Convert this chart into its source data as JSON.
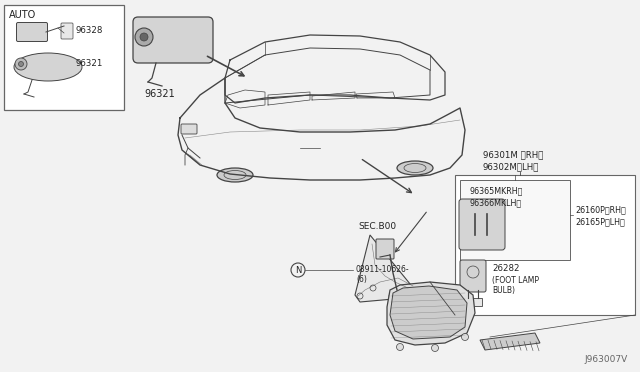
{
  "bg_color": "#f2f2f2",
  "labels": {
    "auto_box": "AUTO",
    "part_96328": "96328",
    "part_96321_box": "96321",
    "part_96321_main": "96321",
    "part_96301M": "96301M 〈RH〉",
    "part_96302M": "96302M〈LH〉",
    "part_96365M": "96365MKRH〉",
    "part_96366M": "96366MKLH〉",
    "part_26160P": "26160P〈RH〉",
    "part_26165P": "26165P〈LH〉",
    "part_26282": "26282",
    "foot_lamp": "(FOOT LAMP\nBULB)",
    "sec_800": "SEC.B00",
    "bolt": "08911-10626-",
    "bolt2": "(6)",
    "diagram_code": "J963007V"
  },
  "colors": {
    "line": "#444444",
    "box_bg": "#ffffff",
    "box_border": "#555555",
    "text": "#222222",
    "fill_light": "#e8e8e8",
    "fill_mid": "#d4d4d4"
  }
}
